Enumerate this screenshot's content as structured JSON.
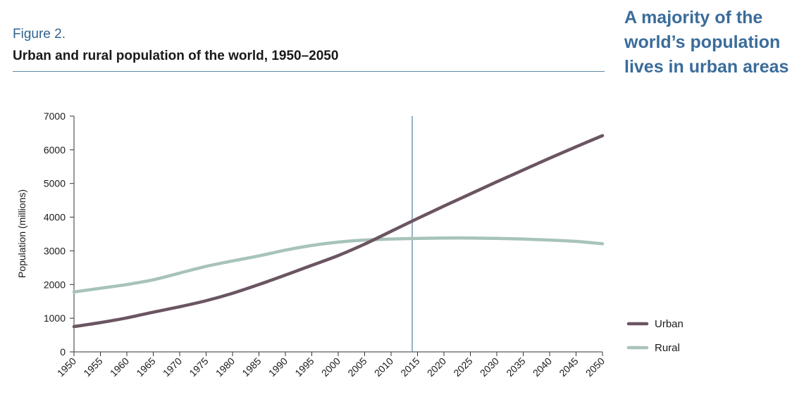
{
  "figure_label": "Figure 2.",
  "figure_title": "Urban and rural population of the world, 1950–2050",
  "callout": "A majority of the world’s population lives in urban areas",
  "colors": {
    "urban": "#6b5562",
    "rural": "#a7c3ba",
    "marker": "#5f87a6",
    "axis": "#333333",
    "callout": "#3a6c9a"
  },
  "chart_data": {
    "type": "line",
    "ylabel": "Population (millions)",
    "xlabel": "",
    "ylim": [
      0,
      7000
    ],
    "yticks": [
      0,
      1000,
      2000,
      3000,
      4000,
      5000,
      6000,
      7000
    ],
    "x": [
      1950,
      1955,
      1960,
      1965,
      1970,
      1975,
      1980,
      1985,
      1990,
      1995,
      2000,
      2005,
      2010,
      2015,
      2020,
      2025,
      2030,
      2035,
      2040,
      2045,
      2050
    ],
    "vertical_marker_x": 2014,
    "legend_position": "bottom-right",
    "series": [
      {
        "name": "Urban",
        "color": "#6b5562",
        "values": [
          750,
          870,
          1010,
          1180,
          1340,
          1520,
          1740,
          2000,
          2280,
          2570,
          2860,
          3200,
          3580,
          3960,
          4330,
          4690,
          5050,
          5400,
          5750,
          6090,
          6420
        ]
      },
      {
        "name": "Rural",
        "color": "#a7c3ba",
        "values": [
          1780,
          1890,
          2000,
          2140,
          2340,
          2540,
          2700,
          2850,
          3020,
          3160,
          3260,
          3320,
          3350,
          3370,
          3380,
          3380,
          3370,
          3350,
          3320,
          3280,
          3210
        ]
      }
    ]
  }
}
